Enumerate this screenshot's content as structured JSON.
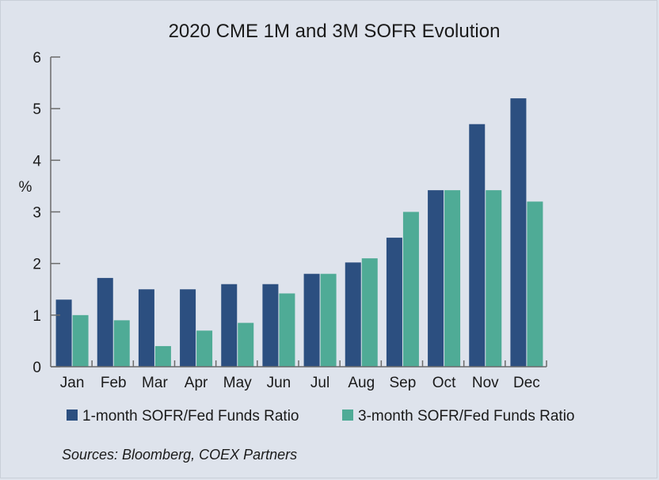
{
  "colors": {
    "background": "#dee3ec",
    "series_1": "#2c4f80",
    "series_2": "#4fab96",
    "axis": "#6b6b6b"
  },
  "chart_data": {
    "type": "bar",
    "title": "2020 CME 1M and 3M SOFR Evolution",
    "xlabel": "",
    "ylabel": "%",
    "ylim": [
      0,
      6
    ],
    "yticks": [
      "0",
      "1",
      "2",
      "3",
      "4",
      "5",
      "6"
    ],
    "categories": [
      "Jan",
      "Feb",
      "Mar",
      "Apr",
      "May",
      "Jun",
      "Jul",
      "Aug",
      "Sep",
      "Oct",
      "Nov",
      "Dec"
    ],
    "series": [
      {
        "name": "1-month SOFR/Fed Funds Ratio",
        "values": [
          1.3,
          1.72,
          1.5,
          1.5,
          1.6,
          1.6,
          1.8,
          2.02,
          2.5,
          3.42,
          4.7,
          5.2
        ]
      },
      {
        "name": "3-month SOFR/Fed Funds Ratio",
        "values": [
          1.0,
          0.9,
          0.4,
          0.7,
          0.85,
          1.42,
          1.8,
          2.1,
          3.0,
          3.42,
          3.42,
          3.2
        ]
      }
    ],
    "legend_position": "bottom",
    "grid": false
  },
  "source_note": "Sources: Bloomberg, COEX Partners"
}
